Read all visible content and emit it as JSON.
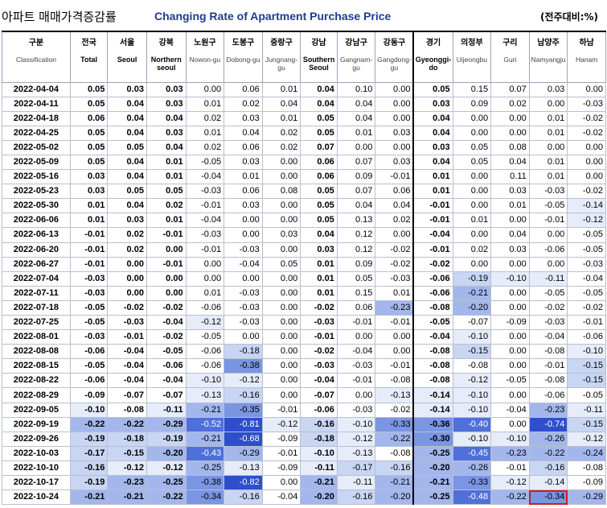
{
  "title": {
    "korean": "아파트 매매가격증감률",
    "english": "Changing Rate of Apartment Purchase Price",
    "unit": "(전주대비:%)"
  },
  "colors": {
    "title_accent": "#1f3c8f",
    "highlight_border": "#d11a1a",
    "scale": [
      "#ffffff",
      "#e6ecf9",
      "#c8d5f3",
      "#a3b7ec",
      "#7a95e2",
      "#4f70d8",
      "#2d4fcc"
    ]
  },
  "chart_data": {
    "type": "heatmap",
    "title": "Changing Rate of Apartment Purchase Price",
    "unit": "(전주대비:%)",
    "corner": {
      "ko": "구분",
      "en": "Classification"
    },
    "columns": [
      {
        "ko": "전국",
        "en": "Total",
        "bold": true
      },
      {
        "ko": "서울",
        "en": "Seoul",
        "bold": true
      },
      {
        "ko": "강북",
        "en": "Northern seoul",
        "bold": true
      },
      {
        "ko": "노원구",
        "en": "Nowon-gu",
        "bold": false
      },
      {
        "ko": "도봉구",
        "en": "Dobong-gu",
        "bold": false
      },
      {
        "ko": "중랑구",
        "en": "Jungnang-gu",
        "bold": false
      },
      {
        "ko": "강남",
        "en": "Southern Seoul",
        "bold": true
      },
      {
        "ko": "강남구",
        "en": "Gangnam-gu",
        "bold": false
      },
      {
        "ko": "강동구",
        "en": "Gangdong-gu",
        "bold": false
      },
      {
        "ko": "경기",
        "en": "Gyeonggi-do",
        "bold": true
      },
      {
        "ko": "의정부",
        "en": "Uijeongbu",
        "bold": false
      },
      {
        "ko": "구리",
        "en": "Guri",
        "bold": false
      },
      {
        "ko": "남양주",
        "en": "Namyangju",
        "bold": false
      },
      {
        "ko": "하남",
        "en": "Hanam",
        "bold": false
      }
    ],
    "rows": [
      {
        "date": "2022-04-04",
        "values": [
          "0.05",
          "0.03",
          "0.03",
          "0.00",
          "0.06",
          "0.01",
          "0.04",
          "0.10",
          "0.00",
          "0.05",
          "0.15",
          "0.07",
          "0.03",
          "0.00"
        ]
      },
      {
        "date": "2022-04-11",
        "values": [
          "0.05",
          "0.04",
          "0.03",
          "0.01",
          "0.02",
          "0.04",
          "0.04",
          "0.04",
          "0.00",
          "0.03",
          "0.09",
          "0.02",
          "0.00",
          "-0.03"
        ]
      },
      {
        "date": "2022-04-18",
        "values": [
          "0.06",
          "0.04",
          "0.04",
          "0.02",
          "0.03",
          "0.01",
          "0.05",
          "0.04",
          "0.00",
          "0.04",
          "0.00",
          "0.00",
          "0.01",
          "-0.02"
        ]
      },
      {
        "date": "2022-04-25",
        "values": [
          "0.05",
          "0.04",
          "0.03",
          "0.01",
          "0.04",
          "0.02",
          "0.05",
          "0.01",
          "0.03",
          "0.04",
          "0.00",
          "0.00",
          "0.01",
          "-0.02"
        ]
      },
      {
        "date": "2022-05-02",
        "values": [
          "0.05",
          "0.05",
          "0.04",
          "0.02",
          "0.06",
          "0.02",
          "0.07",
          "0.00",
          "0.00",
          "0.03",
          "0.05",
          "0.08",
          "0.00",
          "0.00"
        ]
      },
      {
        "date": "2022-05-09",
        "values": [
          "0.05",
          "0.04",
          "0.01",
          "-0.05",
          "0.03",
          "0.00",
          "0.06",
          "0.07",
          "0.03",
          "0.04",
          "0.05",
          "0.04",
          "0.01",
          "0.00"
        ]
      },
      {
        "date": "2022-05-16",
        "values": [
          "0.03",
          "0.04",
          "0.01",
          "-0.04",
          "0.01",
          "0.00",
          "0.06",
          "0.09",
          "-0.01",
          "0.01",
          "0.00",
          "0.11",
          "0.01",
          "0.00"
        ]
      },
      {
        "date": "2022-05-23",
        "values": [
          "0.03",
          "0.05",
          "0.05",
          "-0.03",
          "0.06",
          "0.08",
          "0.05",
          "0.07",
          "0.06",
          "0.01",
          "0.00",
          "0.03",
          "-0.03",
          "-0.02"
        ]
      },
      {
        "date": "2022-05-30",
        "values": [
          "0.01",
          "0.04",
          "0.02",
          "-0.01",
          "0.03",
          "0.00",
          "0.05",
          "0.04",
          "0.04",
          "-0.01",
          "0.00",
          "0.01",
          "-0.05",
          "-0.14"
        ]
      },
      {
        "date": "2022-06-06",
        "values": [
          "0.01",
          "0.03",
          "0.01",
          "-0.04",
          "0.00",
          "0.00",
          "0.05",
          "0.13",
          "0.02",
          "-0.01",
          "0.01",
          "0.00",
          "-0.01",
          "-0.12"
        ]
      },
      {
        "date": "2022-06-13",
        "values": [
          "-0.01",
          "0.02",
          "-0.01",
          "-0.03",
          "0.00",
          "0.03",
          "0.04",
          "0.12",
          "0.00",
          "-0.04",
          "0.00",
          "0.04",
          "0.00",
          "-0.05"
        ]
      },
      {
        "date": "2022-06-20",
        "values": [
          "-0.01",
          "0.02",
          "0.00",
          "-0.01",
          "-0.03",
          "0.00",
          "0.03",
          "0.12",
          "-0.02",
          "-0.01",
          "0.02",
          "0.03",
          "-0.06",
          "-0.05"
        ]
      },
      {
        "date": "2022-06-27",
        "values": [
          "-0.01",
          "0.00",
          "-0.01",
          "0.00",
          "-0.04",
          "0.05",
          "0.01",
          "0.09",
          "-0.02",
          "-0.02",
          "0.00",
          "0.00",
          "0.00",
          "-0.03"
        ]
      },
      {
        "date": "2022-07-04",
        "values": [
          "-0.03",
          "0.00",
          "0.00",
          "0.00",
          "0.00",
          "0.00",
          "0.01",
          "0.05",
          "-0.03",
          "-0.06",
          "-0.19",
          "-0.10",
          "-0.11",
          "-0.04"
        ]
      },
      {
        "date": "2022-07-11",
        "values": [
          "-0.03",
          "0.00",
          "0.00",
          "0.01",
          "-0.03",
          "0.00",
          "0.01",
          "0.15",
          "0.01",
          "-0.06",
          "-0.21",
          "0.00",
          "-0.05",
          "-0.05"
        ]
      },
      {
        "date": "2022-07-18",
        "values": [
          "-0.05",
          "-0.02",
          "-0.02",
          "-0.06",
          "-0.03",
          "0.00",
          "-0.02",
          "0.06",
          "-0.23",
          "-0.08",
          "-0.20",
          "0.00",
          "-0.02",
          "-0.02"
        ]
      },
      {
        "date": "2022-07-25",
        "values": [
          "-0.05",
          "-0.03",
          "-0.04",
          "-0.12",
          "-0.03",
          "0.00",
          "-0.03",
          "-0.01",
          "-0.01",
          "-0.05",
          "-0.07",
          "-0.09",
          "-0.03",
          "-0.01"
        ]
      },
      {
        "date": "2022-08-01",
        "values": [
          "-0.03",
          "-0.01",
          "-0.02",
          "-0.05",
          "0.00",
          "0.00",
          "-0.01",
          "0.00",
          "0.00",
          "-0.04",
          "-0.10",
          "0.00",
          "-0.04",
          "-0.06"
        ]
      },
      {
        "date": "2022-08-08",
        "values": [
          "-0.06",
          "-0.04",
          "-0.05",
          "-0.06",
          "-0.18",
          "0.00",
          "-0.02",
          "-0.04",
          "0.00",
          "-0.08",
          "-0.15",
          "0.00",
          "-0.08",
          "-0.10"
        ]
      },
      {
        "date": "2022-08-15",
        "values": [
          "-0.05",
          "-0.04",
          "-0.06",
          "-0.06",
          "-0.38",
          "0.00",
          "-0.03",
          "-0.03",
          "-0.01",
          "-0.08",
          "-0.08",
          "0.00",
          "-0.01",
          "-0.15"
        ]
      },
      {
        "date": "2022-08-22",
        "values": [
          "-0.06",
          "-0.04",
          "-0.04",
          "-0.10",
          "-0.12",
          "0.00",
          "-0.04",
          "-0.01",
          "-0.08",
          "-0.08",
          "-0.12",
          "-0.05",
          "-0.08",
          "-0.15"
        ]
      },
      {
        "date": "2022-08-29",
        "values": [
          "-0.09",
          "-0.07",
          "-0.07",
          "-0.13",
          "-0.16",
          "0.00",
          "-0.07",
          "0.00",
          "-0.13",
          "-0.14",
          "-0.10",
          "0.00",
          "-0.06",
          "-0.05"
        ]
      },
      {
        "date": "2022-09-05",
        "values": [
          "-0.10",
          "-0.08",
          "-0.11",
          "-0.21",
          "-0.35",
          "-0.01",
          "-0.06",
          "-0.03",
          "-0.02",
          "-0.14",
          "-0.10",
          "-0.04",
          "-0.23",
          "-0.11"
        ]
      },
      {
        "date": "2022-09-19",
        "values": [
          "-0.22",
          "-0.22",
          "-0.29",
          "-0.52",
          "-0.81",
          "-0.12",
          "-0.16",
          "-0.10",
          "-0.33",
          "-0.36",
          "-0.40",
          "0.00",
          "-0.74",
          "-0.15"
        ]
      },
      {
        "date": "2022-09-26",
        "values": [
          "-0.19",
          "-0.18",
          "-0.19",
          "-0.21",
          "-0.68",
          "-0.09",
          "-0.18",
          "-0.12",
          "-0.22",
          "-0.30",
          "-0.10",
          "-0.10",
          "-0.26",
          "-0.12"
        ]
      },
      {
        "date": "2022-10-03",
        "values": [
          "-0.17",
          "-0.15",
          "-0.20",
          "-0.43",
          "-0.29",
          "-0.01",
          "-0.10",
          "-0.13",
          "-0.08",
          "-0.25",
          "-0.45",
          "-0.23",
          "-0.22",
          "-0.24"
        ]
      },
      {
        "date": "2022-10-10",
        "values": [
          "-0.16",
          "-0.12",
          "-0.12",
          "-0.25",
          "-0.13",
          "-0.09",
          "-0.11",
          "-0.17",
          "-0.16",
          "-0.20",
          "-0.26",
          "-0.01",
          "-0.16",
          "-0.08"
        ]
      },
      {
        "date": "2022-10-17",
        "values": [
          "-0.19",
          "-0.23",
          "-0.25",
          "-0.38",
          "-0.82",
          "0.00",
          "-0.21",
          "-0.11",
          "-0.21",
          "-0.21",
          "-0.33",
          "-0.12",
          "-0.14",
          "-0.09"
        ]
      },
      {
        "date": "2022-10-24",
        "values": [
          "-0.21",
          "-0.21",
          "-0.22",
          "-0.34",
          "-0.16",
          "-0.04",
          "-0.20",
          "-0.16",
          "-0.20",
          "-0.25",
          "-0.48",
          "-0.22",
          "-0.34",
          "-0.29"
        ]
      }
    ],
    "highlight": {
      "date": "2022-10-24",
      "column": "Namyangju"
    }
  }
}
